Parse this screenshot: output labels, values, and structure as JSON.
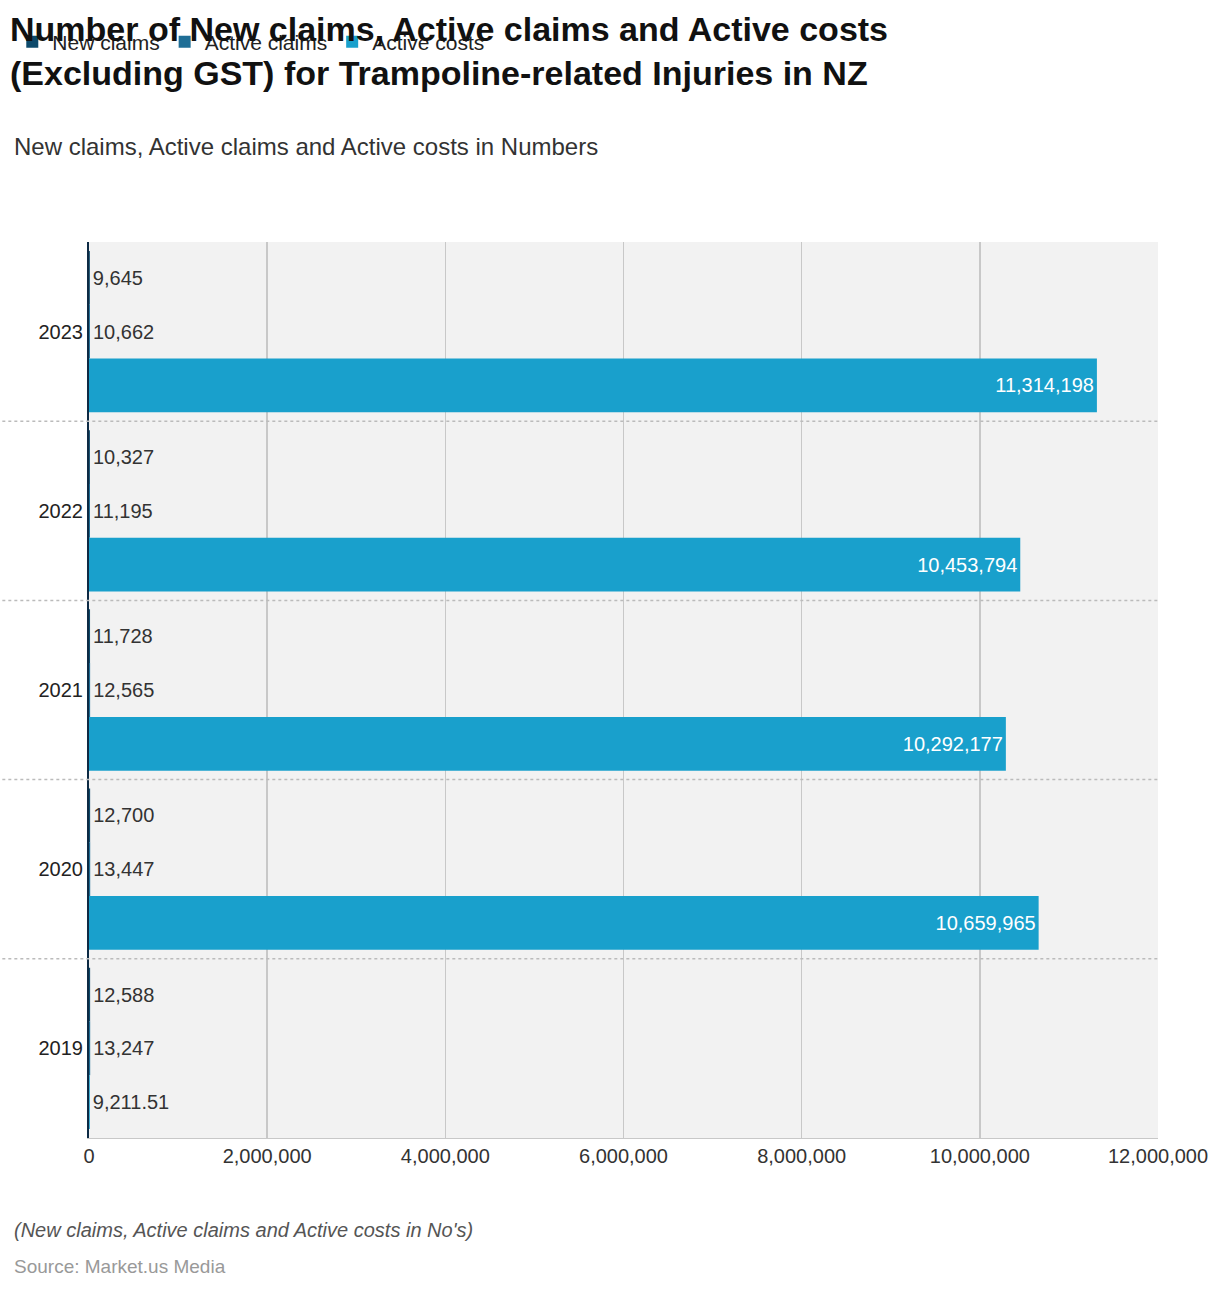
{
  "chart_data": {
    "type": "bar",
    "title": "Number of New claims, Active claims and Active costs\n(Excluding GST) for Trampoline-related Injuries in NZ",
    "subtitle": "New claims, Active claims and Active costs in Numbers",
    "footnote": "(New claims, Active claims and Active costs in No's)",
    "source": "Source: Market.us Media",
    "orientation": "horizontal",
    "data_labels": true,
    "grid": true,
    "legend": "top-left",
    "categories": [
      "2023",
      "2022",
      "2021",
      "2020",
      "2019"
    ],
    "series": [
      {
        "name": "New claims",
        "color": "#0d4a6b",
        "values": [
          9645,
          10327,
          11728,
          12700,
          12588
        ],
        "value_labels": [
          "9,645",
          "10,327",
          "11,728",
          "12,700",
          "12,588"
        ]
      },
      {
        "name": "Active claims",
        "color": "#1f6e96",
        "values": [
          10662,
          11195,
          12565,
          13447,
          13247
        ],
        "value_labels": [
          "10,662",
          "11,195",
          "12,565",
          "13,447",
          "13,247"
        ]
      },
      {
        "name": "Active costs",
        "color": "#19a0cc",
        "values": [
          11314198,
          10453794,
          10292177,
          10659965,
          9211.51
        ],
        "value_labels": [
          "11,314,198",
          "10,453,794",
          "10,292,177",
          "10,659,965",
          "9,211.51"
        ]
      }
    ],
    "xlim": [
      0,
      12000000
    ],
    "xticks": [
      0,
      {
        "value": 2000000,
        "label": "2,000,000"
      },
      {
        "value": 4000000,
        "label": "4,000,000"
      },
      {
        "value": 6000000,
        "label": "6,000,000"
      },
      {
        "value": 8000000,
        "label": "8,000,000"
      },
      {
        "value": 10000000,
        "label": "10,000,000"
      },
      {
        "value": 12000000,
        "label": "12,000,000"
      }
    ]
  }
}
